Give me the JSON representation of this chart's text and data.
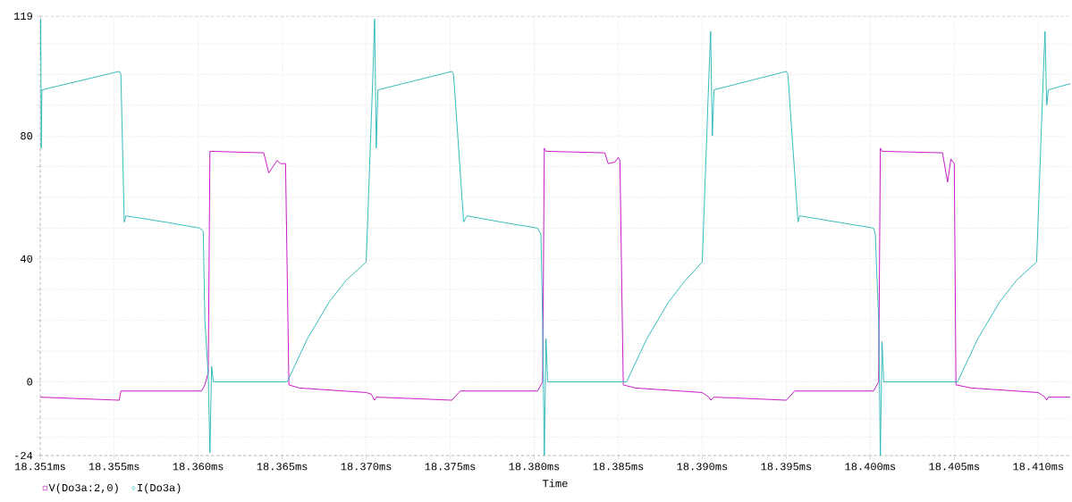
{
  "chart_data": {
    "type": "line",
    "xlabel": "Time",
    "xlim": [
      18.3506,
      18.4119
    ],
    "ylim": [
      -24,
      119
    ],
    "xticks": [
      {
        "value": 18.3506,
        "label": "18.351ms"
      },
      {
        "value": 18.355,
        "label": "18.355ms"
      },
      {
        "value": 18.36,
        "label": "18.360ms"
      },
      {
        "value": 18.365,
        "label": "18.365ms"
      },
      {
        "value": 18.37,
        "label": "18.370ms"
      },
      {
        "value": 18.375,
        "label": "18.375ms"
      },
      {
        "value": 18.38,
        "label": "18.380ms"
      },
      {
        "value": 18.385,
        "label": "18.385ms"
      },
      {
        "value": 18.39,
        "label": "18.390ms"
      },
      {
        "value": 18.395,
        "label": "18.395ms"
      },
      {
        "value": 18.4,
        "label": "18.400ms"
      },
      {
        "value": 18.405,
        "label": "18.405ms"
      },
      {
        "value": 18.41,
        "label": "18.410ms"
      }
    ],
    "yticks": [
      -24,
      {
        "value": -18,
        "label": null
      },
      {
        "value": -12,
        "label": null
      },
      0,
      {
        "value": 10,
        "label": null
      },
      {
        "value": 20,
        "label": null
      },
      {
        "value": 30,
        "label": null
      },
      40,
      {
        "value": 50,
        "label": null
      },
      {
        "value": 60,
        "label": null
      },
      {
        "value": 70,
        "label": null
      },
      80,
      {
        "value": 90,
        "label": null
      },
      {
        "value": 100,
        "label": null
      },
      {
        "value": 110,
        "label": null
      },
      119
    ],
    "grid": true,
    "legend": "bottom left",
    "marker": "none",
    "line_style": "solid",
    "series": [
      {
        "name": "V(Do3a:2,0)",
        "color": "#c000c0",
        "x": [
          18.3506,
          18.353,
          18.3553,
          18.3554,
          18.3602,
          18.3604,
          18.3606,
          18.3607,
          18.3639,
          18.3642,
          18.3647,
          18.3649,
          18.3652,
          18.3654,
          18.366,
          18.37,
          18.3703,
          18.3705,
          18.3706,
          18.373,
          18.3751,
          18.3756,
          18.3802,
          18.3805,
          18.3806,
          18.3807,
          18.3842,
          18.3844,
          18.3848,
          18.385,
          18.3851,
          18.3853,
          18.386,
          18.39,
          18.3904,
          18.3905,
          18.3907,
          18.393,
          18.395,
          18.3955,
          18.4002,
          18.4005,
          18.4006,
          18.4007,
          18.4043,
          18.4046,
          18.4048,
          18.405,
          18.4051,
          18.406,
          18.41,
          18.4104,
          18.4105,
          18.4106,
          18.4119
        ],
        "values": [
          -5,
          -5.5,
          -6,
          -3,
          -3,
          -1,
          3,
          75,
          74.5,
          68,
          72,
          71,
          71,
          -1,
          -2,
          -3.5,
          -4,
          -6,
          -5,
          -5.5,
          -6,
          -3,
          -3,
          0,
          76,
          75,
          74.5,
          71,
          71.5,
          73,
          72,
          -1,
          -2,
          -3.5,
          -5,
          -6,
          -5,
          -5.5,
          -6,
          -3,
          -3,
          0,
          76,
          75,
          74.5,
          65,
          72.5,
          71,
          -1,
          -2,
          -3.5,
          -5,
          -6,
          -5,
          -5
        ]
      },
      {
        "name": "I(Do3a)",
        "color": "#20b4b4",
        "x": [
          18.3506,
          18.35063,
          18.35066,
          18.3507,
          18.3553,
          18.3554,
          18.3556,
          18.3557,
          18.358,
          18.3601,
          18.3603,
          18.3604,
          18.3606,
          18.3607,
          18.3608,
          18.3609,
          18.3653,
          18.3665,
          18.3678,
          18.3688,
          18.37,
          18.3704,
          18.3705,
          18.3706,
          18.3707,
          18.3751,
          18.3752,
          18.3758,
          18.376,
          18.378,
          18.3802,
          18.3804,
          18.3805,
          18.3806,
          18.3807,
          18.3808,
          18.3855,
          18.3867,
          18.388,
          18.389,
          18.39,
          18.3904,
          18.3905,
          18.3906,
          18.3907,
          18.395,
          18.3951,
          18.3957,
          18.3958,
          18.398,
          18.4002,
          18.4003,
          18.4005,
          18.4006,
          18.4007,
          18.4008,
          18.4052,
          18.4064,
          18.4077,
          18.4087,
          18.4099,
          18.4103,
          18.4104,
          18.4105,
          18.4106,
          18.4119
        ],
        "values": [
          105,
          118,
          76,
          95,
          101,
          100,
          52,
          54,
          52,
          50,
          49,
          20,
          2,
          -23,
          5,
          0,
          0,
          14,
          26,
          33,
          39,
          100,
          118,
          76,
          95,
          101,
          100,
          52,
          54,
          52,
          50,
          48,
          20,
          -24,
          14,
          0,
          0,
          14,
          26,
          33,
          39,
          100,
          114,
          80,
          95,
          101,
          100,
          52,
          54,
          52,
          50,
          48,
          20,
          -24,
          13,
          0,
          0,
          14,
          26,
          33,
          39,
          100,
          114,
          90,
          95,
          97
        ]
      }
    ]
  }
}
